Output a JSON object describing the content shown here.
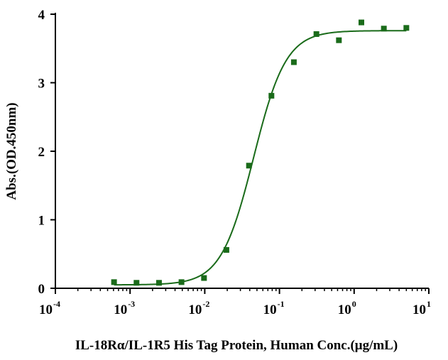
{
  "chart_data": {
    "type": "scatter",
    "title": "",
    "xlabel": "IL-18Rα/IL-1R5 His Tag Protein, Human Conc.(μg/mL)",
    "ylabel": "Abs.(OD.450nm)",
    "x_scale": "log",
    "xlim": [
      0.0001,
      10
    ],
    "ylim": [
      0,
      4
    ],
    "x_ticks": [
      {
        "base": "10",
        "exp": "-4"
      },
      {
        "base": "10",
        "exp": "-3"
      },
      {
        "base": "10",
        "exp": "-2"
      },
      {
        "base": "10",
        "exp": "-1"
      },
      {
        "base": "10",
        "exp": "0"
      },
      {
        "base": "10",
        "exp": "1"
      }
    ],
    "y_ticks": [
      "0",
      "1",
      "2",
      "3",
      "4"
    ],
    "grid": false,
    "series": [
      {
        "color": "#1a6b1a",
        "x": [
          0.00061,
          0.00122,
          0.00244,
          0.00488,
          0.00977,
          0.0195,
          0.0391,
          0.0781,
          0.156,
          0.3125,
          0.625,
          1.25,
          2.5,
          5.0
        ],
        "y": [
          0.09,
          0.08,
          0.08,
          0.09,
          0.15,
          0.56,
          1.79,
          2.81,
          3.3,
          3.71,
          3.62,
          3.88,
          3.79,
          3.8
        ],
        "fit": {
          "bottom": 0.05,
          "top": 3.76,
          "ec50": 0.045,
          "hill": 2.0
        }
      }
    ]
  }
}
